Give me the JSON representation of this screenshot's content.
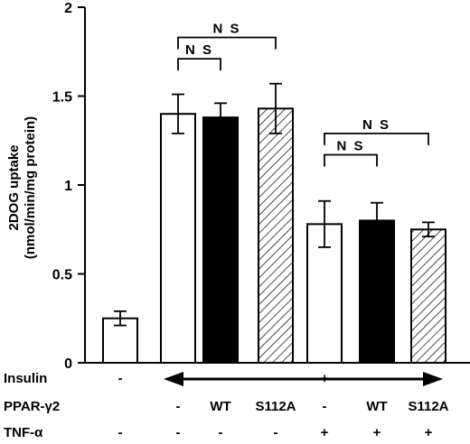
{
  "chart_data": {
    "type": "bar",
    "ylabel_line1": "2DOG uptake",
    "ylabel_line2": "(nmol/min/mg protein)",
    "xlabel": "",
    "title": "",
    "ylim": [
      0,
      2
    ],
    "y_ticks": [
      "0",
      "0.5",
      "1",
      "1.5",
      "2"
    ],
    "y_tick_values": [
      0,
      0.5,
      1,
      1.5,
      2
    ],
    "grid": false,
    "bars": [
      {
        "value": 0.25,
        "error": 0.04,
        "fill": "white"
      },
      {
        "value": 1.4,
        "error": 0.11,
        "fill": "white"
      },
      {
        "value": 1.38,
        "error": 0.08,
        "fill": "black"
      },
      {
        "value": 1.43,
        "error": 0.14,
        "fill": "hatched"
      },
      {
        "value": 0.78,
        "error": 0.13,
        "fill": "white"
      },
      {
        "value": 0.8,
        "error": 0.1,
        "fill": "black"
      },
      {
        "value": 0.75,
        "error": 0.04,
        "fill": "hatched"
      }
    ],
    "significance": [
      {
        "from": 1,
        "to": 2,
        "label": "N S",
        "level": 1.71
      },
      {
        "from": 1,
        "to": 3,
        "label": "N S",
        "level": 1.83
      },
      {
        "from": 4,
        "to": 5,
        "label": "N S",
        "level": 1.17
      },
      {
        "from": 4,
        "to": 6,
        "label": "N S",
        "level": 1.29
      }
    ],
    "conditions": [
      {
        "name": "Insulin",
        "cells": [
          "-",
          "",
          "",
          "",
          "+",
          "",
          ""
        ],
        "arrow": {
          "from": 1,
          "to": 6
        }
      },
      {
        "name": "PPAR-γ2",
        "cells": [
          "",
          "-",
          "WT",
          "S112A",
          "-",
          "WT",
          "S112A"
        ]
      },
      {
        "name": "TNF-α",
        "cells": [
          "-",
          "-",
          "-",
          "-",
          "+",
          "+",
          "+"
        ]
      }
    ]
  },
  "colors": {
    "ink": "#000000",
    "paper": "#ffffff"
  }
}
